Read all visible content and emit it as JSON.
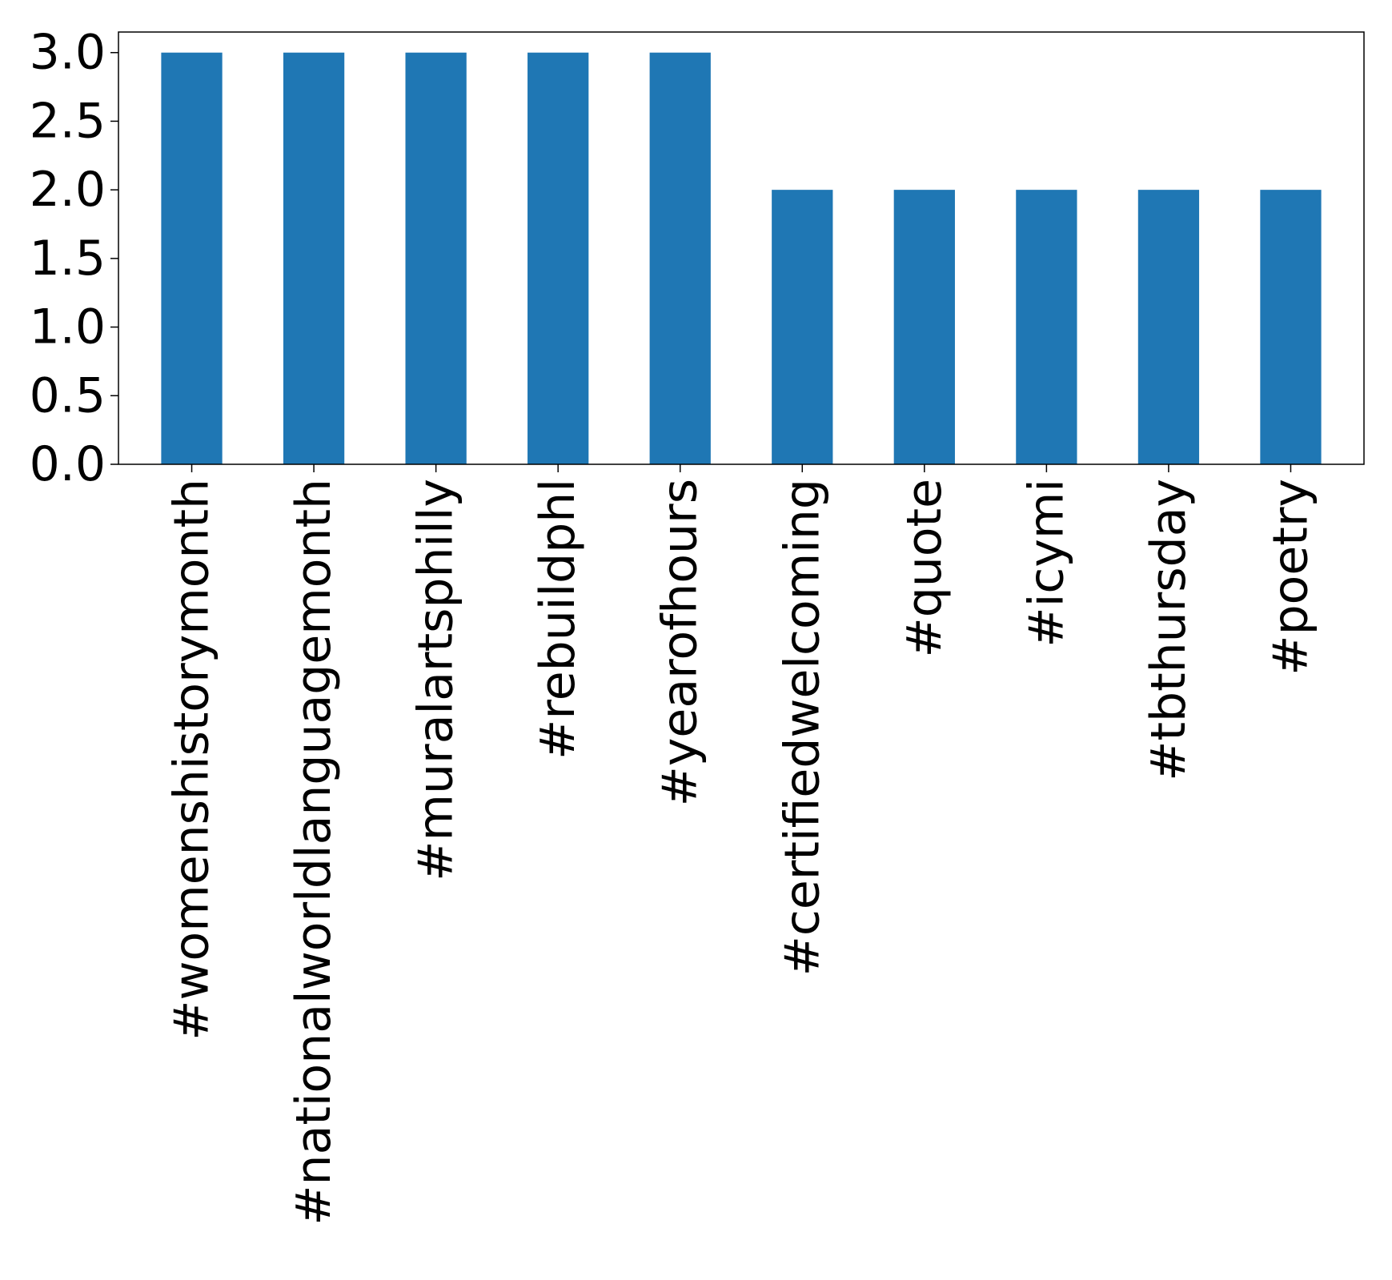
{
  "chart_data": {
    "type": "bar",
    "title": "",
    "xlabel": "",
    "ylabel": "",
    "categories": [
      "#womenshistorymonth",
      "#nationalworldlanguagemonth",
      "#muralartsphilly",
      "#rebuildphl",
      "#yearofhours",
      "#certifiedwelcoming",
      "#quote",
      "#icymi",
      "#tbthursday",
      "#poetry"
    ],
    "values": [
      3,
      3,
      3,
      3,
      3,
      2,
      2,
      2,
      2,
      2
    ],
    "ylim": [
      0,
      3.15
    ],
    "yticks": [
      "0.0",
      "0.5",
      "1.0",
      "1.5",
      "2.0",
      "2.5",
      "3.0"
    ],
    "grid": false,
    "legend": "none",
    "bar_color": "#1f77b4"
  }
}
